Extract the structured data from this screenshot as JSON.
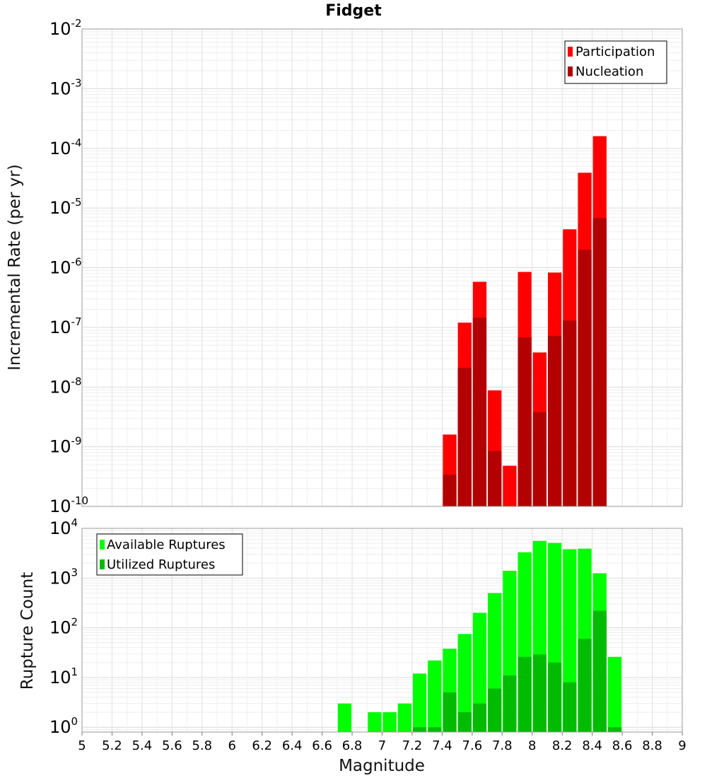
{
  "chart_data": [
    {
      "type": "bar",
      "title": "Fidget",
      "xlabel": "",
      "ylabel": "Incremental Rate (per yr)",
      "y_scale": "log",
      "ylim": [
        1e-10,
        0.01
      ],
      "xlim": [
        5,
        9
      ],
      "y_ticks": [
        {
          "base": "10",
          "exp": "-10"
        },
        {
          "base": "10",
          "exp": "-9"
        },
        {
          "base": "10",
          "exp": "-8"
        },
        {
          "base": "10",
          "exp": "-7"
        },
        {
          "base": "10",
          "exp": "-6"
        },
        {
          "base": "10",
          "exp": "-5"
        },
        {
          "base": "10",
          "exp": "-4"
        },
        {
          "base": "10",
          "exp": "-3"
        },
        {
          "base": "10",
          "exp": "-2"
        }
      ],
      "legend_position": "top-right",
      "x": [
        7.45,
        7.55,
        7.65,
        7.75,
        7.85,
        7.95,
        8.05,
        8.15,
        8.25,
        8.35,
        8.45
      ],
      "series": [
        {
          "name": "Participation",
          "color": "#ff0000",
          "values": [
            1.6e-09,
            1.2e-07,
            5.8e-07,
            8.8e-09,
            4.8e-10,
            8.5e-07,
            3.8e-08,
            8.3e-07,
            4.4e-06,
            3.9e-05,
            0.00016
          ]
        },
        {
          "name": "Nucleation",
          "color": "#b30000",
          "values": [
            3.4e-10,
            2.1e-08,
            1.45e-07,
            8.5e-10,
            null,
            6.8e-08,
            3.8e-09,
            7.2e-08,
            1.3e-07,
            2e-06,
            6.8e-06
          ]
        }
      ]
    },
    {
      "type": "bar",
      "title": "",
      "xlabel": "Magnitude",
      "ylabel": "Rupture Count",
      "y_scale": "log",
      "ylim": [
        0.8,
        10000
      ],
      "xlim": [
        5,
        9
      ],
      "y_ticks": [
        {
          "base": "10",
          "exp": "0"
        },
        {
          "base": "10",
          "exp": "1"
        },
        {
          "base": "10",
          "exp": "2"
        },
        {
          "base": "10",
          "exp": "3"
        },
        {
          "base": "10",
          "exp": "4"
        }
      ],
      "x_ticks": [
        "5",
        "5.2",
        "5.4",
        "5.6",
        "5.8",
        "6",
        "6.2",
        "6.4",
        "6.6",
        "6.8",
        "7",
        "7.2",
        "7.4",
        "7.6",
        "7.8",
        "8",
        "8.2",
        "8.4",
        "8.6",
        "8.8",
        "9"
      ],
      "legend_position": "top-left",
      "x": [
        6.75,
        6.95,
        7.05,
        7.15,
        7.25,
        7.35,
        7.45,
        7.55,
        7.65,
        7.75,
        7.85,
        7.95,
        8.05,
        8.15,
        8.25,
        8.35,
        8.45,
        8.55
      ],
      "series": [
        {
          "name": "Available Ruptures",
          "color": "#00ff00",
          "values": [
            3,
            2,
            2,
            3,
            12,
            22,
            38,
            75,
            200,
            500,
            1400,
            3300,
            5600,
            5100,
            3800,
            3900,
            1250,
            26
          ]
        },
        {
          "name": "Utilized Ruptures",
          "color": "#00bb00",
          "values": [
            null,
            null,
            null,
            null,
            1,
            1,
            5,
            2,
            3,
            6,
            11,
            26,
            29,
            20,
            8,
            60,
            220,
            1
          ]
        }
      ]
    }
  ]
}
